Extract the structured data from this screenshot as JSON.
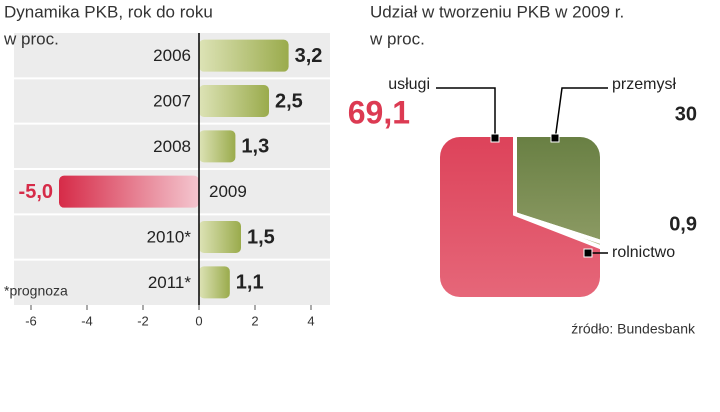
{
  "chart_data": [
    {
      "type": "barh",
      "title": "Dynamika PKB, rok do roku",
      "subtitle": "w proc.",
      "categories": [
        "2006",
        "2007",
        "2008",
        "2009",
        "2010*",
        "2011*"
      ],
      "values": [
        3.2,
        2.5,
        1.3,
        -5.0,
        1.5,
        1.1
      ],
      "value_labels": [
        "3,2",
        "2,5",
        "1,3",
        "-5,0",
        "1,5",
        "1,1"
      ],
      "xlim": [
        -6.5,
        4.5
      ],
      "xticks": [
        -6,
        -4,
        -2,
        0,
        2,
        4
      ],
      "colors": {
        "positive": "#9aab4c",
        "negative": "#d62b48"
      },
      "note": "*prognoza"
    },
    {
      "type": "pie",
      "title": "Udział w tworzeniu PKB w 2009 r.",
      "subtitle": "w proc.",
      "categories": [
        "przemysł",
        "rolnictwo",
        "usługi"
      ],
      "values": [
        30,
        0.9,
        69.1
      ],
      "value_labels": [
        "30",
        "0,9",
        "69,1"
      ],
      "colors": [
        "#5b7333",
        "#b8c090",
        "#dc3a52"
      ],
      "source": "źródło: Bundesbank"
    }
  ]
}
